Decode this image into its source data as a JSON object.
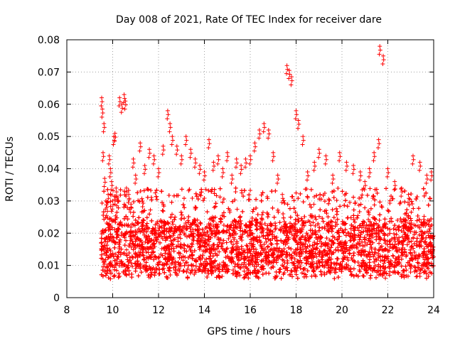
{
  "chart_data": {
    "type": "scatter",
    "title": "Day 008 of 2021, Rate Of TEC Index for receiver dare",
    "xlabel": "GPS time / hours",
    "ylabel": "ROTI / TECUs",
    "xlim": [
      8,
      24
    ],
    "ylim": [
      0,
      0.08
    ],
    "x_ticks": [
      8,
      10,
      12,
      14,
      16,
      18,
      20,
      22,
      24
    ],
    "y_ticks": [
      0,
      0.01,
      0.02,
      0.03,
      0.04,
      0.05,
      0.06,
      0.07,
      0.08
    ],
    "x_tick_labels": [
      "8",
      "10",
      "12",
      "14",
      "16",
      "18",
      "20",
      "22",
      "24"
    ],
    "y_tick_labels": [
      "0",
      "0.01",
      "0.02",
      "0.03",
      "0.04",
      "0.05",
      "0.06",
      "0.07",
      "0.08"
    ],
    "grid": true,
    "marker": "plus",
    "color": "#ff0000",
    "series": [
      {
        "x": [
          9.52,
          9.55,
          9.58,
          9.62,
          9.65,
          9.7,
          9.75,
          9.8,
          9.85,
          9.9,
          9.95,
          10.0,
          10.05,
          10.1,
          10.15,
          10.2,
          10.3,
          10.4,
          10.5,
          10.55,
          10.6,
          10.7,
          10.8,
          10.9,
          11.0,
          11.2,
          11.4,
          11.6,
          11.8,
          12.0,
          12.2,
          12.4,
          12.5,
          12.6,
          12.8,
          13.0,
          13.2,
          13.4,
          13.6,
          13.8,
          14.0,
          14.2,
          14.4,
          14.6,
          14.8,
          15.0,
          15.2,
          15.4,
          15.6,
          15.8,
          16.0,
          16.2,
          16.4,
          16.6,
          16.8,
          17.0,
          17.2,
          17.4,
          17.6,
          17.7,
          17.8,
          18.0,
          18.1,
          18.3,
          18.5,
          18.8,
          19.0,
          19.3,
          19.6,
          19.9,
          20.2,
          20.5,
          20.8,
          21.0,
          21.2,
          21.4,
          21.6,
          21.65,
          21.8,
          22.0,
          22.3,
          22.6,
          22.9,
          23.1,
          23.4,
          23.7,
          23.9
        ],
        "y": [
          0.062,
          0.0585,
          0.045,
          0.054,
          0.037,
          0.03,
          0.028,
          0.032,
          0.044,
          0.04,
          0.036,
          0.03,
          0.05,
          0.051,
          0.034,
          0.031,
          0.062,
          0.06,
          0.063,
          0.061,
          0.034,
          0.032,
          0.029,
          0.043,
          0.038,
          0.048,
          0.041,
          0.046,
          0.044,
          0.04,
          0.047,
          0.058,
          0.054,
          0.05,
          0.047,
          0.044,
          0.05,
          0.046,
          0.043,
          0.041,
          0.039,
          0.049,
          0.042,
          0.044,
          0.04,
          0.045,
          0.038,
          0.043,
          0.041,
          0.043,
          0.044,
          0.048,
          0.052,
          0.054,
          0.052,
          0.045,
          0.038,
          0.032,
          0.072,
          0.0705,
          0.0685,
          0.058,
          0.055,
          0.05,
          0.039,
          0.042,
          0.046,
          0.044,
          0.038,
          0.045,
          0.042,
          0.041,
          0.039,
          0.036,
          0.04,
          0.045,
          0.049,
          0.078,
          0.075,
          0.04,
          0.036,
          0.034,
          0.032,
          0.044,
          0.042,
          0.038,
          0.039
        ],
        "envelope": {
          "x_start": 9.5,
          "x_end": 24.0,
          "typical_range": [
            0.006,
            0.03
          ]
        }
      }
    ]
  }
}
